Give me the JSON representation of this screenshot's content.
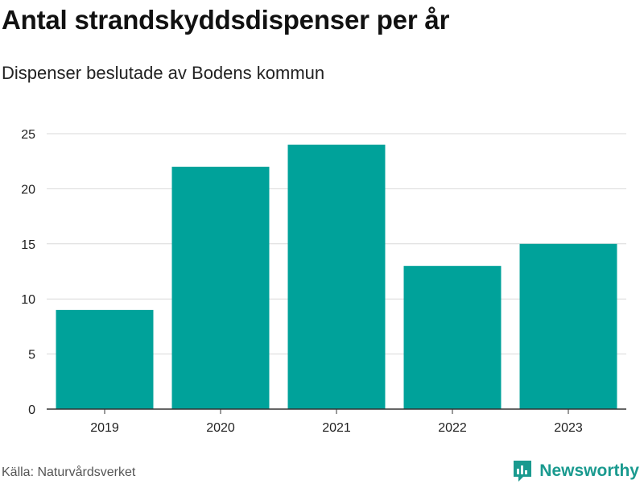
{
  "header": {
    "title": "Antal strandskyddsdispenser per år",
    "subtitle": "Dispenser beslutade av Bodens kommun"
  },
  "footer": {
    "source": "Källa: Naturvårdsverket",
    "brand": "Newsworthy",
    "brand_icon": "newsworthy-logo-icon"
  },
  "colors": {
    "bar": "#00a29a",
    "grid": "#d9d9d9",
    "axis": "#333333",
    "brand": "#1a9a8f"
  },
  "chart_data": {
    "type": "bar",
    "title": "Antal strandskyddsdispenser per år",
    "subtitle": "Dispenser beslutade av Bodens kommun",
    "categories": [
      "2019",
      "2020",
      "2021",
      "2022",
      "2023"
    ],
    "values": [
      9,
      22,
      24,
      13,
      15
    ],
    "xlabel": "",
    "ylabel": "",
    "ylim": [
      0,
      25
    ],
    "yticks": [
      0,
      5,
      10,
      15,
      20,
      25
    ],
    "grid": true,
    "legend": "none"
  }
}
